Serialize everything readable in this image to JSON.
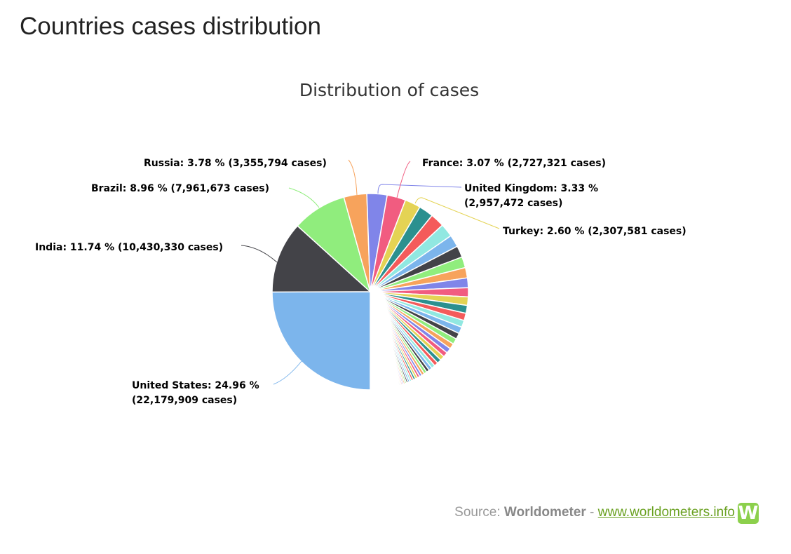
{
  "page_title": "Countries cases distribution",
  "source": {
    "prefix": "Source: ",
    "name": "Worldometer",
    "sep": " - ",
    "link": "www.worldometers.info",
    "logo_letter": "W"
  },
  "chart_data": {
    "type": "pie",
    "title": "Distribution of cases",
    "start": "bottom, clockwise",
    "colors": [
      "#7cb5ec",
      "#434348",
      "#90ed7d",
      "#f7a35c",
      "#8085e9",
      "#f15c80",
      "#e4d354",
      "#2b908f",
      "#f45b5b",
      "#91e8e1"
    ],
    "labeled": [
      {
        "name": "United States",
        "percent": 24.96,
        "cases": "22,179,909",
        "line1": "United States: 24.96 %",
        "line2": "(22,179,909 cases)"
      },
      {
        "name": "India",
        "percent": 11.74,
        "cases": "10,430,330",
        "line1": "India: 11.74 % (10,430,330 cases)"
      },
      {
        "name": "Brazil",
        "percent": 8.96,
        "cases": "7,961,673",
        "line1": "Brazil: 8.96 % (7,961,673 cases)"
      },
      {
        "name": "Russia",
        "percent": 3.78,
        "cases": "3,355,794",
        "line1": "Russia: 3.78 % (3,355,794 cases)"
      },
      {
        "name": "United Kingdom",
        "percent": 3.33,
        "cases": "2,957,472",
        "line1": "United Kingdom: 3.33 %",
        "line2": "(2,957,472 cases)"
      },
      {
        "name": "France",
        "percent": 3.07,
        "cases": "2,727,321",
        "line1": "France: 3.07 % (2,727,321 cases)"
      },
      {
        "name": "Turkey",
        "percent": 2.6,
        "cases": "2,307,581",
        "line1": "Turkey: 2.60 % (2,307,581 cases)"
      }
    ],
    "other_percents": [
      2.4,
      2.3,
      2.2,
      2.0,
      1.9,
      1.8,
      1.7,
      1.6,
      1.5,
      1.4,
      1.3,
      1.2,
      1.15,
      1.1,
      1.0,
      0.95,
      0.9,
      0.85,
      0.8,
      0.75,
      0.7,
      0.65,
      0.6,
      0.55,
      0.5,
      0.48,
      0.45,
      0.42,
      0.4,
      0.38,
      0.36,
      0.34,
      0.32,
      0.3,
      0.28,
      0.26,
      0.24,
      0.22,
      0.2,
      0.19,
      0.18,
      0.17,
      0.16,
      0.15,
      0.14,
      0.13,
      0.12,
      0.11,
      0.1,
      0.09,
      0.08,
      0.07,
      0.06,
      0.05
    ]
  }
}
